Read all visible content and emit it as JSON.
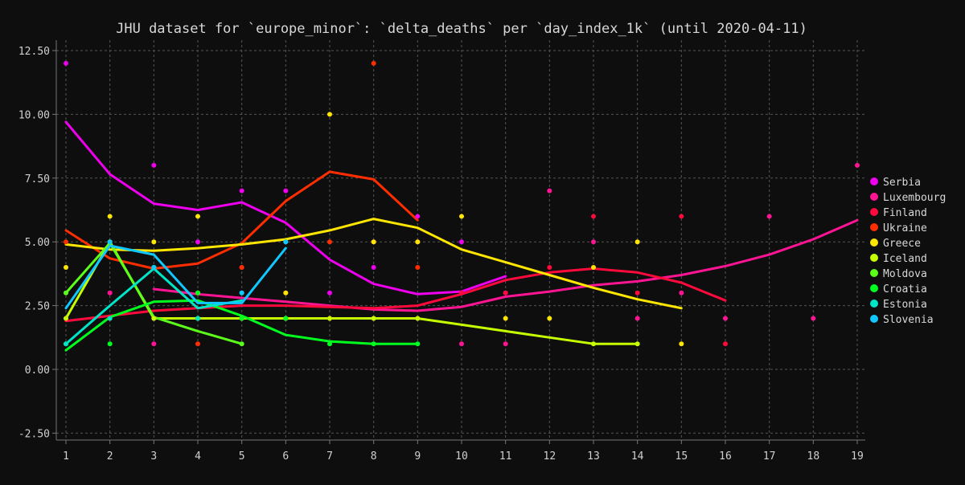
{
  "chart_data": {
    "type": "line",
    "title": "JHU dataset for `europe_minor`: `delta_deaths` per `day_index_1k` (until 2020-04-11)",
    "xlabel": "",
    "ylabel": "",
    "xlim": [
      1,
      19
    ],
    "ylim": [
      -2.5,
      13.0
    ],
    "x_ticks": [
      1,
      2,
      3,
      4,
      5,
      6,
      7,
      8,
      9,
      10,
      11,
      12,
      13,
      14,
      15,
      16,
      17,
      18,
      19
    ],
    "y_ticks": [
      "-2.50",
      "0.00",
      "2.50",
      "5.00",
      "7.50",
      "10.00",
      "12.50"
    ],
    "y_tick_values": [
      -2.5,
      0,
      2.5,
      5,
      7.5,
      10,
      12.5
    ],
    "grid": true,
    "legend_position": "right",
    "series": [
      {
        "name": "Serbia",
        "color": "#ee00ee",
        "points": [
          [
            1,
            12
          ],
          [
            3,
            8
          ],
          [
            4,
            5
          ],
          [
            5,
            7
          ],
          [
            6,
            7
          ],
          [
            7,
            3
          ],
          [
            8,
            4
          ],
          [
            9,
            6
          ],
          [
            10,
            5
          ],
          [
            11,
            3
          ]
        ],
        "line": [
          [
            1,
            9.7
          ],
          [
            2,
            7.65
          ],
          [
            3,
            6.5
          ],
          [
            4,
            6.25
          ],
          [
            5,
            6.55
          ],
          [
            6,
            5.75
          ],
          [
            7,
            4.3
          ],
          [
            8,
            3.35
          ],
          [
            9,
            2.95
          ],
          [
            10,
            3.05
          ],
          [
            11,
            3.65
          ]
        ]
      },
      {
        "name": "Luxembourg",
        "color": "#ff1493",
        "points": [
          [
            2,
            3
          ],
          [
            3,
            1
          ],
          [
            4,
            3
          ],
          [
            5,
            4
          ],
          [
            6,
            2
          ],
          [
            7,
            2
          ],
          [
            8,
            5
          ],
          [
            9,
            2
          ],
          [
            10,
            1
          ],
          [
            11,
            1
          ],
          [
            12,
            7
          ],
          [
            13,
            5
          ],
          [
            14,
            2
          ],
          [
            15,
            3
          ],
          [
            16,
            2
          ],
          [
            17,
            6
          ],
          [
            18,
            2
          ],
          [
            19,
            8
          ]
        ],
        "line": [
          [
            3,
            3.15
          ],
          [
            4,
            2.95
          ],
          [
            5,
            2.8
          ],
          [
            6,
            2.65
          ],
          [
            7,
            2.5
          ],
          [
            8,
            2.35
          ],
          [
            9,
            2.3
          ],
          [
            10,
            2.45
          ],
          [
            11,
            2.85
          ],
          [
            12,
            3.05
          ],
          [
            13,
            3.3
          ],
          [
            14,
            3.45
          ],
          [
            15,
            3.7
          ],
          [
            16,
            4.05
          ],
          [
            17,
            4.5
          ],
          [
            18,
            5.1
          ],
          [
            19,
            5.85
          ]
        ]
      },
      {
        "name": "Finland",
        "color": "#ff0a3c",
        "points": [
          [
            1,
            2
          ],
          [
            2,
            2
          ],
          [
            3,
            2
          ],
          [
            4,
            3
          ],
          [
            5,
            2
          ],
          [
            6,
            3
          ],
          [
            7,
            2
          ],
          [
            8,
            2
          ],
          [
            9,
            5
          ],
          [
            10,
            3
          ],
          [
            11,
            3
          ],
          [
            12,
            4
          ],
          [
            13,
            6
          ],
          [
            14,
            3
          ],
          [
            15,
            6
          ],
          [
            16,
            1
          ]
        ],
        "line": [
          [
            1,
            1.9
          ],
          [
            2,
            2.1
          ],
          [
            3,
            2.3
          ],
          [
            4,
            2.4
          ],
          [
            5,
            2.5
          ],
          [
            6,
            2.5
          ],
          [
            7,
            2.45
          ],
          [
            8,
            2.4
          ],
          [
            9,
            2.5
          ],
          [
            10,
            2.95
          ],
          [
            11,
            3.5
          ],
          [
            12,
            3.8
          ],
          [
            13,
            3.95
          ],
          [
            14,
            3.8
          ],
          [
            15,
            3.4
          ],
          [
            16,
            2.7
          ]
        ]
      },
      {
        "name": "Ukraine",
        "color": "#ff2e00",
        "points": [
          [
            1,
            5
          ],
          [
            2,
            5
          ],
          [
            3,
            2
          ],
          [
            4,
            1
          ],
          [
            5,
            4
          ],
          [
            6,
            5
          ],
          [
            7,
            5
          ],
          [
            8,
            12
          ],
          [
            9,
            4
          ]
        ],
        "line": [
          [
            1,
            5.45
          ],
          [
            2,
            4.35
          ],
          [
            3,
            3.95
          ],
          [
            4,
            4.15
          ],
          [
            5,
            4.95
          ],
          [
            6,
            6.6
          ],
          [
            7,
            7.75
          ],
          [
            8,
            7.45
          ],
          [
            9,
            5.85
          ]
        ]
      },
      {
        "name": "Greece",
        "color": "#ffe600",
        "points": [
          [
            1,
            4
          ],
          [
            2,
            6
          ],
          [
            3,
            5
          ],
          [
            4,
            6
          ],
          [
            5,
            2
          ],
          [
            6,
            3
          ],
          [
            7,
            10
          ],
          [
            8,
            5
          ],
          [
            9,
            5
          ],
          [
            10,
            6
          ],
          [
            11,
            2
          ],
          [
            12,
            2
          ],
          [
            13,
            4
          ],
          [
            14,
            5
          ],
          [
            15,
            1
          ]
        ],
        "line": [
          [
            1,
            4.9
          ],
          [
            2,
            4.7
          ],
          [
            3,
            4.65
          ],
          [
            4,
            4.75
          ],
          [
            5,
            4.9
          ],
          [
            6,
            5.1
          ],
          [
            7,
            5.45
          ],
          [
            8,
            5.9
          ],
          [
            9,
            5.55
          ],
          [
            10,
            4.7
          ],
          [
            11,
            4.2
          ],
          [
            12,
            3.7
          ],
          [
            13,
            3.2
          ],
          [
            14,
            2.75
          ],
          [
            15,
            2.4
          ]
        ]
      },
      {
        "name": "Iceland",
        "color": "#c6ff00",
        "points": [
          [
            1,
            2
          ],
          [
            2,
            5
          ],
          [
            3,
            2
          ],
          [
            4,
            2
          ],
          [
            5,
            2
          ],
          [
            6,
            2
          ],
          [
            7,
            2
          ],
          [
            8,
            2
          ],
          [
            9,
            2
          ],
          [
            13,
            1
          ],
          [
            14,
            1
          ]
        ],
        "line": [
          [
            1,
            2.0
          ],
          [
            2,
            5.0
          ],
          [
            3,
            2.0
          ],
          [
            5,
            2.0
          ],
          [
            6,
            2.0
          ],
          [
            9,
            2.0
          ],
          [
            10,
            1.75
          ],
          [
            11,
            1.5
          ],
          [
            12,
            1.25
          ],
          [
            13,
            1.0
          ],
          [
            14,
            1.0
          ]
        ]
      },
      {
        "name": "Moldova",
        "color": "#5cff1a",
        "points": [
          [
            1,
            3
          ],
          [
            2,
            5
          ],
          [
            3,
            4
          ],
          [
            4,
            3
          ],
          [
            5,
            1
          ]
        ],
        "line": [
          [
            1,
            3.0
          ],
          [
            2,
            4.95
          ],
          [
            3,
            2.05
          ],
          [
            4,
            1.5
          ],
          [
            5,
            1.0
          ]
        ]
      },
      {
        "name": "Croatia",
        "color": "#00ff1e",
        "points": [
          [
            1,
            1
          ],
          [
            2,
            1
          ],
          [
            3,
            4
          ],
          [
            4,
            3
          ],
          [
            5,
            2
          ],
          [
            6,
            2
          ],
          [
            7,
            1
          ],
          [
            8,
            1
          ],
          [
            9,
            1
          ]
        ],
        "line": [
          [
            1,
            0.75
          ],
          [
            2,
            2.05
          ],
          [
            3,
            2.65
          ],
          [
            4,
            2.7
          ],
          [
            5,
            2.1
          ],
          [
            6,
            1.35
          ],
          [
            7,
            1.1
          ],
          [
            8,
            1.0
          ],
          [
            9,
            1.0
          ]
        ]
      },
      {
        "name": "Estonia",
        "color": "#00e5c8",
        "points": [
          [
            1,
            1
          ],
          [
            2,
            2
          ],
          [
            3,
            4
          ],
          [
            4,
            2
          ],
          [
            5,
            3
          ]
        ],
        "line": [
          [
            1,
            1.0
          ],
          [
            2,
            2.5
          ],
          [
            3,
            3.95
          ],
          [
            4,
            2.4
          ],
          [
            5,
            2.7
          ]
        ]
      },
      {
        "name": "Slovenia",
        "color": "#10c8ff",
        "points": [
          [
            2,
            5
          ],
          [
            3,
            4
          ],
          [
            5,
            3
          ],
          [
            6,
            5
          ]
        ],
        "line": [
          [
            1,
            2.4
          ],
          [
            2,
            4.85
          ],
          [
            3,
            4.5
          ],
          [
            4,
            2.6
          ],
          [
            5,
            2.6
          ],
          [
            6,
            4.75
          ]
        ]
      }
    ]
  }
}
